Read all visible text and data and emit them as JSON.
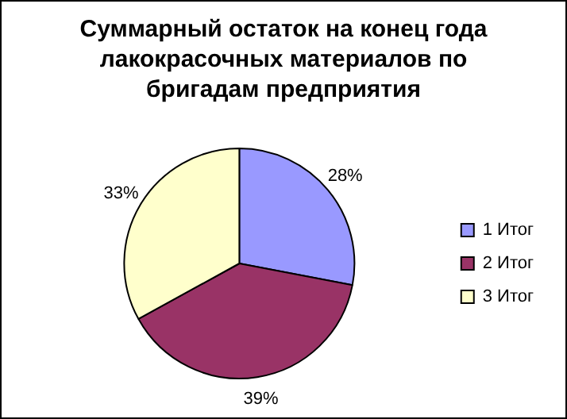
{
  "chart_data": {
    "type": "pie",
    "title": "Суммарный остаток на конец года лакокрасочных материалов по бригадам предприятия",
    "categories": [
      "1 Итог",
      "2 Итог",
      "3 Итог"
    ],
    "values": [
      28,
      39,
      33
    ],
    "colors": [
      "#9999ff",
      "#993366",
      "#ffffcc"
    ],
    "value_labels": [
      "28%",
      "39%",
      "33%"
    ],
    "legend": "right"
  }
}
